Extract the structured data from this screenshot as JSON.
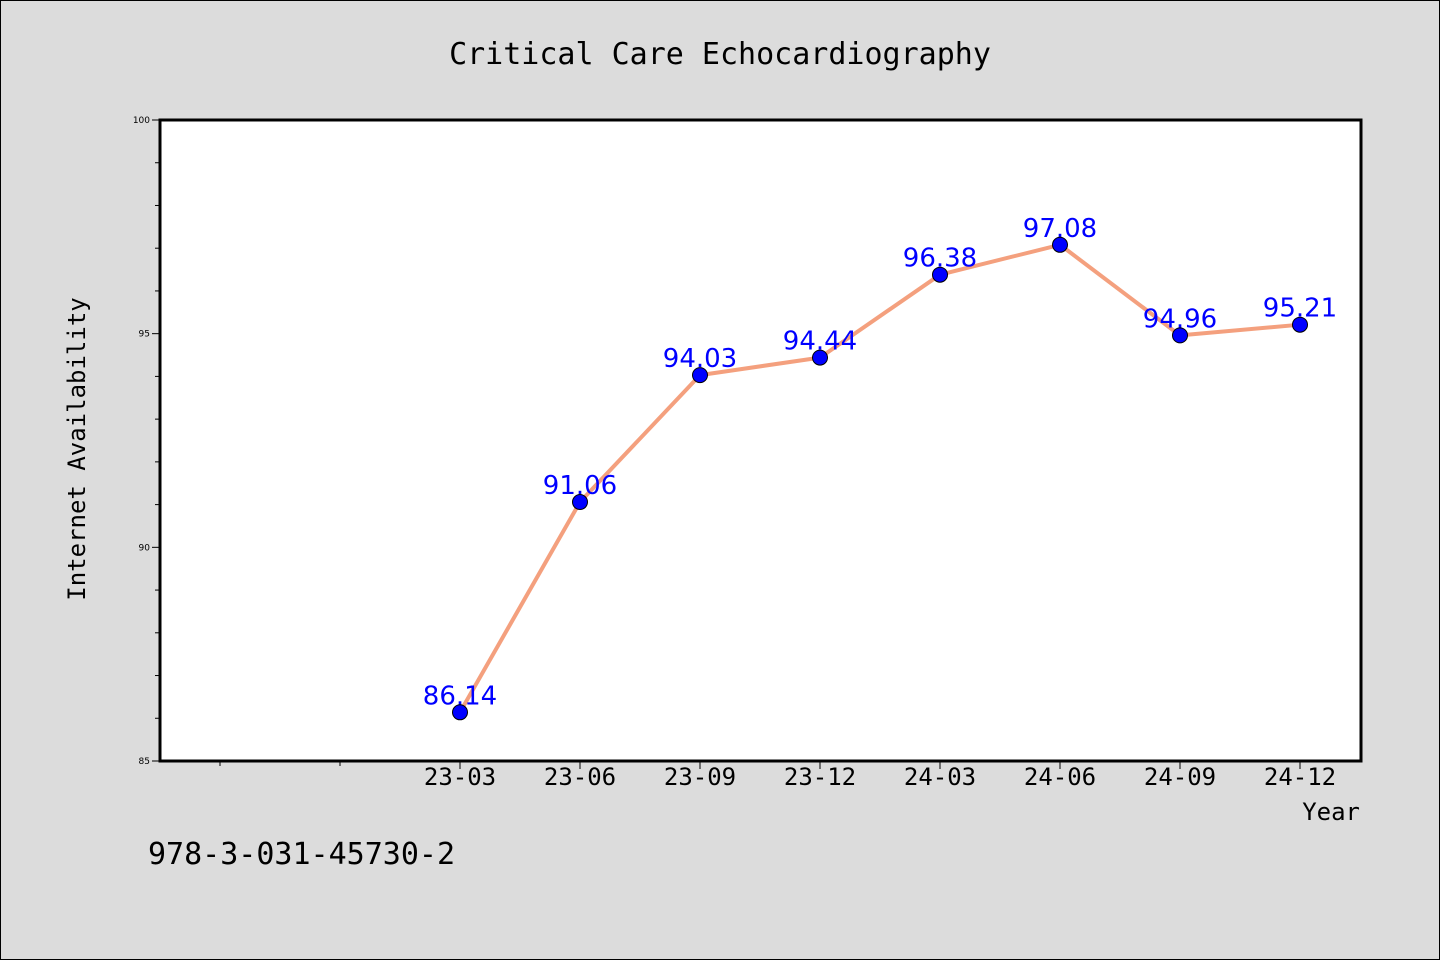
{
  "chart_data": {
    "type": "line",
    "title": "Critical Care Echocardiography",
    "xlabel": "Year",
    "ylabel": "Internet Availability",
    "categories": [
      "23-03",
      "23-06",
      "23-09",
      "23-12",
      "24-03",
      "24-06",
      "24-09",
      "24-12"
    ],
    "series": [
      {
        "values": [
          86.14,
          91.06,
          94.03,
          94.44,
          96.38,
          97.08,
          94.96,
          95.21
        ],
        "labels": [
          "86.14",
          "91.06",
          "94.03",
          "94.44",
          "96.38",
          "97.08",
          "94.96",
          "95.21"
        ],
        "line_color": "#f4a07e",
        "marker_color": "#0000ff"
      }
    ],
    "ylim": [
      85,
      100
    ],
    "yticks": [
      "85",
      "90",
      "95",
      "100"
    ],
    "grid": false,
    "legend": "none"
  },
  "footer": {
    "isbn": "978-3-031-45730-2"
  }
}
